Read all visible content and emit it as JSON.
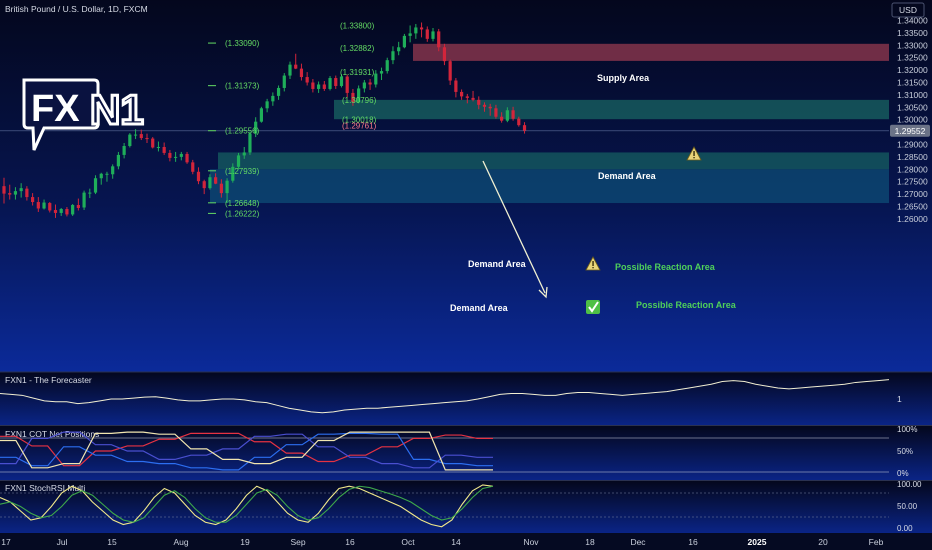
{
  "header": {
    "title": "British Pound / U.S. Dollar, 1D, FXCM"
  },
  "colors": {
    "bg_top": "#04071d",
    "bg_bottom": "#0b2a9a",
    "candle_up": "#1fae5a",
    "candle_down": "#d3253b",
    "supply": "#c84b5c",
    "demand": "#1c7a6c",
    "lower_demand": "#0f5a80",
    "fib_green": "#64dc64",
    "fib_red": "#ff7a8a"
  },
  "price_axis": {
    "currency": "USD",
    "current_price": "1.29552",
    "ticks": [
      "1.34000",
      "1.33500",
      "1.33000",
      "1.32500",
      "1.32000",
      "1.31500",
      "1.31000",
      "1.30500",
      "1.30000",
      "1.29500",
      "1.29000",
      "1.28500",
      "1.28000",
      "1.27500",
      "1.27000",
      "1.26500",
      "1.26000"
    ]
  },
  "time_axis": {
    "ticks": [
      "17",
      "Jul",
      "15",
      "Aug",
      "19",
      "Sep",
      "16",
      "Oct",
      "14",
      "Nov",
      "18",
      "Dec",
      "16",
      "2025",
      "20",
      "Feb"
    ]
  },
  "logo": {
    "text_fx": "FX",
    "text_n1": "N1"
  },
  "zones": {
    "supply": "Supply Area",
    "demand_upper": "Demand Area",
    "demand_mid": "Demand Area",
    "demand_low": "Demand Area",
    "reaction_1": "Possible Reaction Area",
    "reaction_2": "Possible Reaction Area"
  },
  "fib_labels": [
    "(1.33800)",
    "(1.33090)",
    "(1.32882)",
    "(1.31931)",
    "(1.31373)",
    "(1.30796)",
    "(1.30018)",
    "(1.29761)",
    "(1.29556)",
    "(1.27939)",
    "(1.26648)",
    "(1.26222)"
  ],
  "icons": {
    "warning": "warning-icon",
    "check": "check-icon"
  },
  "indicators": {
    "forecaster": {
      "title": "FXN1 - The Forecaster",
      "ticks": [
        "1"
      ]
    },
    "cot": {
      "title": "FXN1 COT Net Positions",
      "ticks": [
        "100%",
        "50%",
        "0%"
      ]
    },
    "stoch": {
      "title": "FXN1 StochRSI Multi",
      "ticks": [
        "100.00",
        "50.00",
        "0.00"
      ]
    }
  },
  "chart_data": {
    "type": "candlestick",
    "title": "British Pound / U.S. Dollar, 1D, FXCM",
    "symbol": "GBPUSD",
    "ylim": [
      1.258,
      1.343
    ],
    "candles_ohlc": [
      [
        1.2732,
        1.2766,
        1.2662,
        1.2702
      ],
      [
        1.2704,
        1.2738,
        1.2678,
        1.2698
      ],
      [
        1.2698,
        1.2728,
        1.2678,
        1.2712
      ],
      [
        1.2712,
        1.2744,
        1.2686,
        1.2724
      ],
      [
        1.2722,
        1.2732,
        1.2674,
        1.2688
      ],
      [
        1.2688,
        1.2704,
        1.2654,
        1.2668
      ],
      [
        1.2668,
        1.2688,
        1.2628,
        1.2642
      ],
      [
        1.2642,
        1.2678,
        1.2638,
        1.2666
      ],
      [
        1.2664,
        1.2668,
        1.2626,
        1.2634
      ],
      [
        1.2636,
        1.2658,
        1.2604,
        1.2624
      ],
      [
        1.2624,
        1.2644,
        1.2612,
        1.264
      ],
      [
        1.264,
        1.2648,
        1.261,
        1.2618
      ],
      [
        1.2618,
        1.266,
        1.2612,
        1.2656
      ],
      [
        1.2656,
        1.2682,
        1.2634,
        1.2644
      ],
      [
        1.2646,
        1.2714,
        1.2636,
        1.2706
      ],
      [
        1.2706,
        1.2722,
        1.2684,
        1.2706
      ],
      [
        1.2706,
        1.2776,
        1.27,
        1.2764
      ],
      [
        1.2764,
        1.2786,
        1.2738,
        1.2782
      ],
      [
        1.2782,
        1.279,
        1.275,
        1.2782
      ],
      [
        1.278,
        1.282,
        1.2762,
        1.2812
      ],
      [
        1.2812,
        1.287,
        1.28,
        1.2858
      ],
      [
        1.2858,
        1.2906,
        1.2844,
        1.2894
      ],
      [
        1.2894,
        1.2946,
        1.2888,
        1.294
      ],
      [
        1.294,
        1.2962,
        1.2922,
        1.294
      ],
      [
        1.2942,
        1.296,
        1.2918,
        1.2926
      ],
      [
        1.2926,
        1.2944,
        1.2906,
        1.2924
      ],
      [
        1.2924,
        1.293,
        1.2884,
        1.2888
      ],
      [
        1.2888,
        1.2912,
        1.2872,
        1.289
      ],
      [
        1.289,
        1.2908,
        1.2858,
        1.2866
      ],
      [
        1.2866,
        1.2878,
        1.2832,
        1.2846
      ],
      [
        1.2846,
        1.287,
        1.283,
        1.285
      ],
      [
        1.285,
        1.287,
        1.2836,
        1.2862
      ],
      [
        1.2862,
        1.287,
        1.2822,
        1.2828
      ],
      [
        1.2828,
        1.2838,
        1.278,
        1.279
      ],
      [
        1.279,
        1.2808,
        1.274,
        1.2752
      ],
      [
        1.2752,
        1.2758,
        1.27,
        1.2724
      ],
      [
        1.2724,
        1.278,
        1.2718,
        1.2768
      ],
      [
        1.2768,
        1.2784,
        1.274,
        1.2742
      ],
      [
        1.2742,
        1.276,
        1.2686,
        1.2704
      ],
      [
        1.2704,
        1.2764,
        1.2664,
        1.2754
      ],
      [
        1.2754,
        1.2824,
        1.2746,
        1.281
      ],
      [
        1.281,
        1.2866,
        1.28,
        1.2856
      ],
      [
        1.2856,
        1.289,
        1.2842,
        1.2868
      ],
      [
        1.2868,
        1.2952,
        1.2858,
        1.2944
      ],
      [
        1.2944,
        1.301,
        1.293,
        1.2992
      ],
      [
        1.2992,
        1.3052,
        1.2988,
        1.3046
      ],
      [
        1.3046,
        1.3084,
        1.303,
        1.3074
      ],
      [
        1.3074,
        1.311,
        1.3056,
        1.3096
      ],
      [
        1.3096,
        1.3138,
        1.308,
        1.3128
      ],
      [
        1.3128,
        1.3188,
        1.3114,
        1.3178
      ],
      [
        1.3178,
        1.3234,
        1.3164,
        1.3222
      ],
      [
        1.3222,
        1.3266,
        1.3204,
        1.3206
      ],
      [
        1.3206,
        1.3226,
        1.3158,
        1.3172
      ],
      [
        1.3172,
        1.3192,
        1.3138,
        1.315
      ],
      [
        1.315,
        1.3164,
        1.311,
        1.3124
      ],
      [
        1.3124,
        1.3154,
        1.3108,
        1.3142
      ],
      [
        1.3142,
        1.3156,
        1.3116,
        1.3124
      ],
      [
        1.3124,
        1.3176,
        1.3118,
        1.3168
      ],
      [
        1.3168,
        1.3178,
        1.3124,
        1.3136
      ],
      [
        1.3136,
        1.3184,
        1.313,
        1.3174
      ],
      [
        1.3174,
        1.3182,
        1.309,
        1.3108
      ],
      [
        1.3108,
        1.3124,
        1.3056,
        1.307
      ],
      [
        1.307,
        1.3138,
        1.3066,
        1.3126
      ],
      [
        1.3126,
        1.316,
        1.311,
        1.315
      ],
      [
        1.315,
        1.3164,
        1.312,
        1.3142
      ],
      [
        1.3142,
        1.32,
        1.313,
        1.3186
      ],
      [
        1.3186,
        1.321,
        1.316,
        1.3196
      ],
      [
        1.3196,
        1.325,
        1.3186,
        1.324
      ],
      [
        1.324,
        1.3296,
        1.3224,
        1.3276
      ],
      [
        1.3276,
        1.3314,
        1.326,
        1.3292
      ],
      [
        1.3292,
        1.3346,
        1.3288,
        1.3338
      ],
      [
        1.3338,
        1.338,
        1.3312,
        1.3348
      ],
      [
        1.3348,
        1.3386,
        1.3326,
        1.3372
      ],
      [
        1.3372,
        1.3392,
        1.3332,
        1.3364
      ],
      [
        1.3364,
        1.3376,
        1.3314,
        1.3326
      ],
      [
        1.3326,
        1.337,
        1.3316,
        1.3356
      ],
      [
        1.3356,
        1.3366,
        1.3276,
        1.3292
      ],
      [
        1.3292,
        1.3306,
        1.322,
        1.3236
      ],
      [
        1.3236,
        1.3242,
        1.314,
        1.3158
      ],
      [
        1.3158,
        1.3168,
        1.309,
        1.3112
      ],
      [
        1.3112,
        1.3122,
        1.308,
        1.3094
      ],
      [
        1.3094,
        1.3104,
        1.3066,
        1.3088
      ],
      [
        1.3088,
        1.3116,
        1.3074,
        1.308
      ],
      [
        1.308,
        1.3094,
        1.3042,
        1.306
      ],
      [
        1.306,
        1.307,
        1.3032,
        1.3052
      ],
      [
        1.3052,
        1.3064,
        1.3016,
        1.3046
      ],
      [
        1.3046,
        1.306,
        1.3004,
        1.3012
      ],
      [
        1.3012,
        1.303,
        1.2988,
        1.2996
      ],
      [
        1.2996,
        1.305,
        1.299,
        1.3038
      ],
      [
        1.3038,
        1.3052,
        1.2996,
        1.3004
      ],
      [
        1.3004,
        1.3012,
        1.2972,
        1.2978
      ],
      [
        1.2978,
        1.299,
        1.2944,
        1.2956
      ]
    ],
    "zones": [
      {
        "label": "Supply Area",
        "from": 1.3237,
        "to": 1.3306
      },
      {
        "label": "Demand Area",
        "from": 1.3002,
        "to": 1.308
      },
      {
        "label": "Demand Area",
        "from": 1.28,
        "to": 1.2868
      },
      {
        "label": "Demand Area",
        "from": 1.2664,
        "to": 1.28
      }
    ],
    "levels": [
      1.338,
      1.3309,
      1.32882,
      1.31931,
      1.31373,
      1.30796,
      1.30018,
      1.29761,
      1.29556,
      1.27939,
      1.26648,
      1.26222
    ],
    "current_price": 1.29552,
    "forecaster": [
      0.62,
      0.6,
      0.58,
      0.52,
      0.46,
      0.44,
      0.44,
      0.4,
      0.42,
      0.46,
      0.5,
      0.5,
      0.52,
      0.54,
      0.55,
      0.52,
      0.48,
      0.46,
      0.46,
      0.48,
      0.5,
      0.5,
      0.48,
      0.44,
      0.42,
      0.36,
      0.3,
      0.26,
      0.22,
      0.2,
      0.22,
      0.26,
      0.28,
      0.3,
      0.3,
      0.32,
      0.34,
      0.36,
      0.38,
      0.4,
      0.42,
      0.44,
      0.46,
      0.5,
      0.55,
      0.6,
      0.62,
      0.62,
      0.6,
      0.58,
      0.58,
      0.62,
      0.64,
      0.64,
      0.62,
      0.6,
      0.58,
      0.6,
      0.62,
      0.64,
      0.66,
      0.7,
      0.74,
      0.78,
      0.82,
      0.88,
      0.9,
      0.88,
      0.82,
      0.78,
      0.74,
      0.72,
      0.74,
      0.76,
      0.78,
      0.8,
      0.82,
      0.86,
      0.88,
      0.9,
      0.92
    ],
    "cot_series": [
      {
        "values": [
          0.85,
          0.85,
          0.62,
          0.62,
          0.15,
          0.15,
          0.5,
          0.5,
          0.62,
          0.62,
          0.78,
          0.78,
          0.92,
          0.92,
          0.92,
          0.92,
          0.72,
          0.72,
          0.45,
          0.45,
          0.25,
          0.25,
          0.4,
          0.4,
          0.6,
          0.6,
          0.8,
          0.8,
          0.88,
          0.88,
          0.8,
          0.8
        ]
      },
      {
        "values": [
          0.35,
          0.35,
          0.15,
          0.15,
          0.6,
          0.6,
          0.4,
          0.4,
          0.25,
          0.25,
          0.2,
          0.2,
          0.1,
          0.1,
          0.05,
          0.05,
          0.35,
          0.35,
          0.65,
          0.65,
          0.9,
          0.9,
          0.92,
          0.92,
          0.9,
          0.9,
          0.3,
          0.3,
          0.2,
          0.2,
          0.15,
          0.15
        ]
      },
      {
        "values": [
          0.2,
          0.2,
          0.8,
          0.8,
          0.95,
          0.95,
          0.65,
          0.65,
          0.5,
          0.5,
          0.3,
          0.3,
          0.4,
          0.4,
          0.55,
          0.55,
          0.85,
          0.85,
          0.9,
          0.9,
          0.6,
          0.6,
          0.35,
          0.35,
          0.2,
          0.2,
          0.1,
          0.1,
          0.4,
          0.4,
          0.35,
          0.35
        ]
      },
      {
        "values": [
          0.75,
          0.75,
          0.1,
          0.1,
          0.2,
          0.2,
          0.92,
          0.92,
          0.95,
          0.95,
          0.9,
          0.9,
          0.55,
          0.55,
          0.3,
          0.3,
          0.2,
          0.2,
          0.35,
          0.35,
          0.75,
          0.75,
          0.95,
          0.95,
          0.95,
          0.95,
          0.95,
          0.95,
          0.05,
          0.05,
          0.05,
          0.05
        ]
      }
    ],
    "stoch_series": [
      {
        "values": [
          0.7,
          0.6,
          0.4,
          0.2,
          0.25,
          0.5,
          0.8,
          0.95,
          0.85,
          0.6,
          0.4,
          0.2,
          0.1,
          0.15,
          0.4,
          0.7,
          0.9,
          0.8,
          0.55,
          0.3,
          0.15,
          0.1,
          0.2,
          0.45,
          0.75,
          0.95,
          0.85,
          0.6,
          0.35,
          0.2,
          0.15,
          0.35,
          0.65,
          0.9,
          0.95,
          0.9,
          0.8,
          0.7,
          0.6,
          0.5,
          0.35,
          0.2,
          0.1,
          0.05,
          0.2,
          0.55,
          0.85,
          0.98,
          0.95
        ]
      },
      {
        "values": [
          0.55,
          0.6,
          0.5,
          0.35,
          0.25,
          0.3,
          0.5,
          0.75,
          0.85,
          0.75,
          0.55,
          0.35,
          0.2,
          0.15,
          0.25,
          0.5,
          0.75,
          0.85,
          0.7,
          0.45,
          0.25,
          0.15,
          0.15,
          0.3,
          0.55,
          0.8,
          0.88,
          0.75,
          0.5,
          0.3,
          0.2,
          0.25,
          0.45,
          0.7,
          0.88,
          0.95,
          0.92,
          0.85,
          0.78,
          0.7,
          0.6,
          0.45,
          0.3,
          0.2,
          0.25,
          0.45,
          0.7,
          0.9,
          0.95
        ]
      }
    ]
  }
}
